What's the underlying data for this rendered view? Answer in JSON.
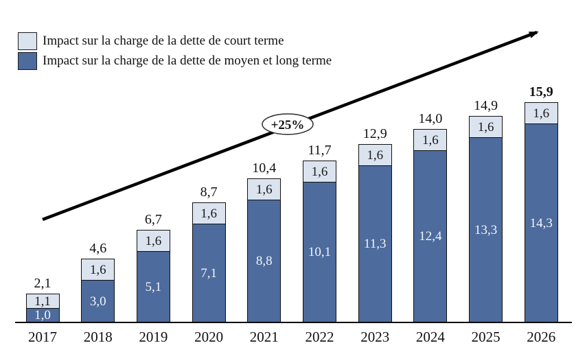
{
  "legend": [
    {
      "label": "Impact sur la charge de la dette de court terme",
      "color": "#dbe3ef"
    },
    {
      "label": "Impact sur la charge de la dette de moyen et long terme",
      "color": "#4d6b9c"
    }
  ],
  "annotation": {
    "label": "+25%"
  },
  "colors": {
    "short_term": "#dbe3ef",
    "long_term": "#4d6b9c",
    "bar_border": "#101010",
    "arrow": "#000000"
  },
  "chart_data": {
    "type": "bar",
    "stacked": true,
    "title": "",
    "xlabel": "",
    "ylabel": "",
    "ylim": [
      0,
      16.5
    ],
    "grid": false,
    "legend_position": "top-left",
    "categories": [
      "2017",
      "2018",
      "2019",
      "2020",
      "2021",
      "2022",
      "2023",
      "2024",
      "2025",
      "2026"
    ],
    "series": [
      {
        "name": "Impact sur la charge de la dette de moyen et long terme",
        "color": "#4d6b9c",
        "values": [
          1.0,
          3.0,
          5.1,
          7.1,
          8.8,
          10.1,
          11.3,
          12.4,
          13.3,
          14.3
        ],
        "labels": [
          "1,0",
          "3,0",
          "5,1",
          "7,1",
          "8,8",
          "10,1",
          "11,3",
          "12,4",
          "13,3",
          "14,3"
        ]
      },
      {
        "name": "Impact sur la charge de la dette de court terme",
        "color": "#dbe3ef",
        "values": [
          1.1,
          1.6,
          1.6,
          1.6,
          1.6,
          1.6,
          1.6,
          1.6,
          1.6,
          1.6
        ],
        "labels": [
          "1,1",
          "1,6",
          "1,6",
          "1,6",
          "1,6",
          "1,6",
          "1,6",
          "1,6",
          "1,6",
          "1,6"
        ]
      }
    ],
    "totals": [
      2.1,
      4.6,
      6.7,
      8.7,
      10.4,
      11.7,
      12.9,
      14.0,
      14.9,
      15.9
    ],
    "total_labels": [
      "2,1",
      "4,6",
      "6,7",
      "8,7",
      "10,4",
      "11,7",
      "12,9",
      "14,0",
      "14,9",
      "15,9"
    ],
    "total_bold": [
      false,
      false,
      false,
      false,
      false,
      false,
      false,
      false,
      false,
      true
    ],
    "annotation": "+25%"
  }
}
